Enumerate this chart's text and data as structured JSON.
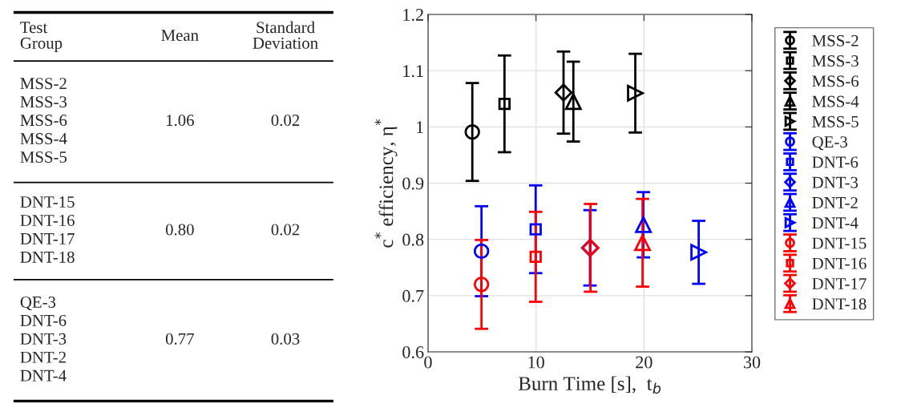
{
  "chart_data": [
    {
      "type": "other",
      "categories": [
        "Test\nGroup",
        "Mean",
        "Standard\nDeviation"
      ],
      "cells": [
        [
          "MSS-2\nMSS-3\nMSS-6\nMSS-4\nMSS-5",
          "1.06",
          "0.02"
        ],
        [
          "DNT-15\nDNT-16\nDNT-17\nDNT-18",
          "0.80",
          "0.02"
        ],
        [
          "QE-3\nDNT-6\nDNT-3\nDNT-2\nDNT-4",
          "0.77",
          "0.03"
        ]
      ]
    },
    {
      "type": "scatter",
      "xlabel": "Burn Time [s],  t$_{b}$",
      "ylabel": "c$^{*}$ efficiency, η$^{*}$",
      "xlim": [
        0,
        30
      ],
      "xticks": [
        0,
        10,
        20,
        30
      ],
      "ylim": [
        0.6,
        1.2
      ],
      "yticks": [
        0.6,
        0.7,
        0.8,
        0.9,
        1,
        1.1,
        1.2
      ],
      "grid": true,
      "legend": "right",
      "series": [
        {
          "name": "MSS-2",
          "color": "#000000",
          "marker": "circle",
          "x": [
            4.1
          ],
          "values": [
            0.991
          ],
          "errors": [
            0.087
          ]
        },
        {
          "name": "MSS-3",
          "color": "#000000",
          "marker": "square",
          "x": [
            7.08
          ],
          "values": [
            1.041
          ],
          "errors": [
            0.086
          ]
        },
        {
          "name": "MSS-6",
          "color": "#000000",
          "marker": "diamond",
          "x": [
            12.55
          ],
          "values": [
            1.061
          ],
          "errors": [
            0.073
          ]
        },
        {
          "name": "MSS-4",
          "color": "#000000",
          "marker": "triangle",
          "x": [
            13.46
          ],
          "values": [
            1.045
          ],
          "errors": [
            0.071
          ]
        },
        {
          "name": "MSS-5",
          "color": "#000000",
          "marker": "triangle-right",
          "x": [
            19.2
          ],
          "values": [
            1.06
          ],
          "errors": [
            0.07
          ]
        },
        {
          "name": "QE-3",
          "color": "#0000ff",
          "marker": "circle",
          "x": [
            4.95
          ],
          "values": [
            0.779
          ],
          "errors": [
            0.08
          ]
        },
        {
          "name": "DNT-6",
          "color": "#0000ff",
          "marker": "square",
          "x": [
            9.97
          ],
          "values": [
            0.818
          ],
          "errors": [
            0.078
          ]
        },
        {
          "name": "DNT-3",
          "color": "#0000ff",
          "marker": "diamond",
          "x": [
            15.0
          ],
          "values": [
            0.785
          ],
          "errors": [
            0.067
          ]
        },
        {
          "name": "DNT-2",
          "color": "#0000ff",
          "marker": "triangle",
          "x": [
            19.95
          ],
          "values": [
            0.826
          ],
          "errors": [
            0.058
          ]
        },
        {
          "name": "DNT-4",
          "color": "#0000ff",
          "marker": "triangle-right",
          "x": [
            25.07
          ],
          "values": [
            0.777
          ],
          "errors": [
            0.056
          ]
        },
        {
          "name": "DNT-15",
          "color": "#ff0000",
          "marker": "circle",
          "x": [
            4.95
          ],
          "values": [
            0.72
          ],
          "errors": [
            0.079
          ]
        },
        {
          "name": "DNT-16",
          "color": "#ff0000",
          "marker": "square",
          "x": [
            9.97
          ],
          "values": [
            0.769
          ],
          "errors": [
            0.08
          ]
        },
        {
          "name": "DNT-17",
          "color": "#ff0000",
          "marker": "diamond",
          "x": [
            15.05
          ],
          "values": [
            0.785
          ],
          "errors": [
            0.078
          ]
        },
        {
          "name": "DNT-18",
          "color": "#ff0000",
          "marker": "triangle",
          "x": [
            19.87
          ],
          "values": [
            0.794
          ],
          "errors": [
            0.078
          ]
        }
      ]
    }
  ]
}
